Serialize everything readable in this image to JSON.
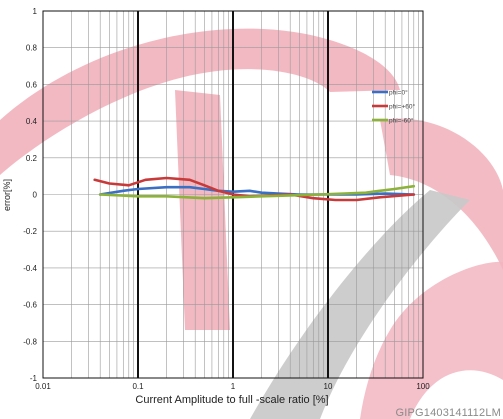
{
  "chart_data": {
    "type": "line",
    "title": "",
    "xlabel": "Current Amplitude to full -scale ratio [%]",
    "ylabel": "error[%]",
    "x_scale": "log",
    "xlim": [
      0.01,
      100
    ],
    "ylim": [
      -1,
      1
    ],
    "x_ticks": [
      "0.01",
      "0.1",
      "1",
      "10",
      "100"
    ],
    "y_ticks": [
      "1",
      "0.8",
      "0.6",
      "0.4",
      "0.2",
      "0",
      "-0.2",
      "-0.4",
      "-0.6",
      "-0.8",
      "-1"
    ],
    "grid": true,
    "legend_position": "right",
    "series": [
      {
        "name": "phi=0°",
        "color": "#3a6fc4",
        "points": [
          [
            0.04,
            0.0
          ],
          [
            0.07,
            0.02
          ],
          [
            0.1,
            0.03
          ],
          [
            0.2,
            0.04
          ],
          [
            0.35,
            0.04
          ],
          [
            0.5,
            0.03
          ],
          [
            0.7,
            0.02
          ],
          [
            1.0,
            0.015
          ],
          [
            1.5,
            0.02
          ],
          [
            2.0,
            0.01
          ],
          [
            3.0,
            0.005
          ],
          [
            5.0,
            0.0
          ],
          [
            10.0,
            0.0
          ],
          [
            20.0,
            0.0
          ],
          [
            40.0,
            0.005
          ],
          [
            80.0,
            0.0
          ]
        ]
      },
      {
        "name": "phi=+60°",
        "color": "#c83a3a",
        "points": [
          [
            0.035,
            0.08
          ],
          [
            0.05,
            0.06
          ],
          [
            0.08,
            0.05
          ],
          [
            0.12,
            0.08
          ],
          [
            0.2,
            0.09
          ],
          [
            0.35,
            0.08
          ],
          [
            0.5,
            0.05
          ],
          [
            0.7,
            0.02
          ],
          [
            1.0,
            0.0
          ],
          [
            1.5,
            -0.01
          ],
          [
            2.5,
            -0.005
          ],
          [
            4.0,
            0.0
          ],
          [
            7.0,
            -0.02
          ],
          [
            12.0,
            -0.03
          ],
          [
            20.0,
            -0.03
          ],
          [
            35.0,
            -0.015
          ],
          [
            60.0,
            -0.005
          ],
          [
            80.0,
            0.0
          ]
        ]
      },
      {
        "name": "phi=-60°",
        "color": "#8cb23a",
        "points": [
          [
            0.04,
            0.0
          ],
          [
            0.1,
            -0.01
          ],
          [
            0.2,
            -0.01
          ],
          [
            0.5,
            -0.02
          ],
          [
            1.0,
            -0.015
          ],
          [
            2.0,
            -0.01
          ],
          [
            4.0,
            -0.005
          ],
          [
            8.0,
            0.0
          ],
          [
            15.0,
            0.005
          ],
          [
            25.0,
            0.01
          ],
          [
            35.0,
            0.02
          ],
          [
            50.0,
            0.03
          ],
          [
            80.0,
            0.045
          ]
        ]
      }
    ]
  },
  "watermark_text": "GIPG1403141112LM"
}
